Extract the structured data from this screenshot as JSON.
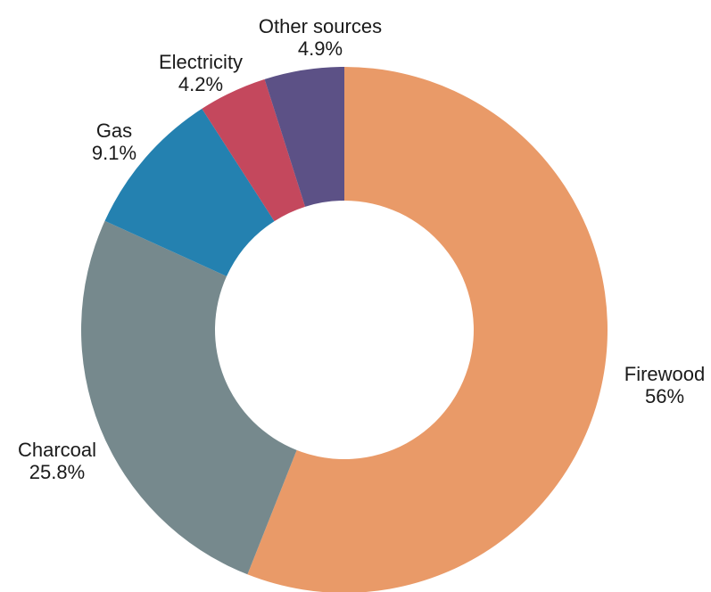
{
  "chart_data": {
    "type": "pie",
    "variant": "donut",
    "title": "",
    "legend": "none",
    "slices": [
      {
        "label": "Firewood",
        "value": 56,
        "value_text": "56%",
        "color": "#e99a68"
      },
      {
        "label": "Charcoal",
        "value": 25.8,
        "value_text": "25.8%",
        "color": "#76898d"
      },
      {
        "label": "Gas",
        "value": 9.1,
        "value_text": "9.1%",
        "color": "#2481b0"
      },
      {
        "label": "Electricity",
        "value": 4.2,
        "value_text": "4.2%",
        "color": "#c4485d"
      },
      {
        "label": "Other sources",
        "value": 4.9,
        "value_text": "4.9%",
        "color": "#5c5186"
      }
    ]
  }
}
